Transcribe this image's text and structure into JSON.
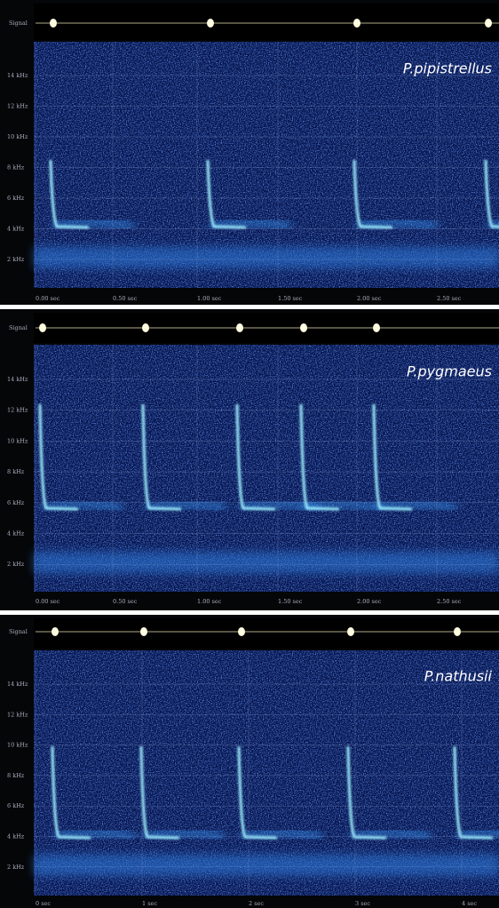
{
  "panels": [
    {
      "signal_label": "Signal",
      "species": "P.pipistrellus",
      "y_ticks": [
        "14 kHz",
        "12 kHz",
        "10 kHz",
        "8 kHz",
        "6 kHz",
        "4 kHz",
        "2 kHz"
      ],
      "x_ticks": [
        "0.00 sec",
        "0.50 sec",
        "1.00 sec",
        "1.50 sec",
        "2.00 sec",
        "2.50 sec"
      ]
    },
    {
      "signal_label": "Signal",
      "species": "P.pygmaeus",
      "y_ticks": [
        "14 kHz",
        "12 kHz",
        "10 kHz",
        "8 kHz",
        "6 kHz",
        "4 kHz",
        "2 kHz"
      ],
      "x_ticks": [
        "0.00 sec",
        "0.50 sec",
        "1.00 sec",
        "1.50 sec",
        "2.00 sec",
        "2.50 sec"
      ]
    },
    {
      "signal_label": "Signal",
      "species": "P.nathusii",
      "y_ticks": [
        "14 kHz",
        "12 kHz",
        "10 kHz",
        "8 kHz",
        "6 kHz",
        "4 kHz",
        "2 kHz"
      ],
      "x_ticks": [
        "0 sec",
        "1 sec",
        "2 sec",
        "3 sec",
        "4 sec"
      ]
    }
  ]
}
